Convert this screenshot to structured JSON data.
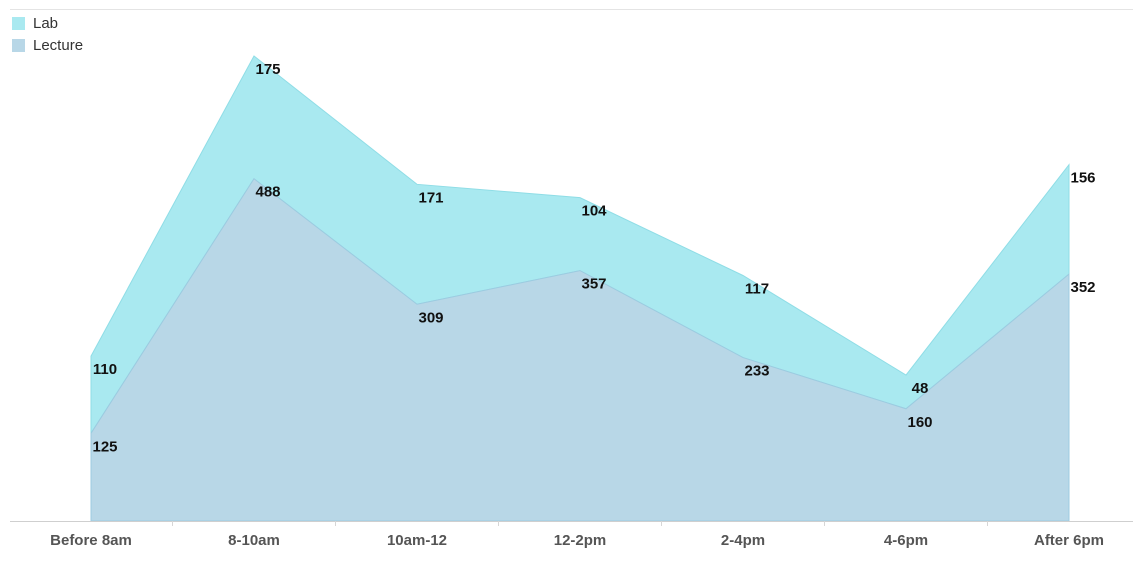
{
  "chart_data": {
    "type": "area",
    "stacked": true,
    "categories": [
      "Before 8am",
      "8-10am",
      "10am-12",
      "12-2pm",
      "2-4pm",
      "4-6pm",
      "After 6pm"
    ],
    "series": [
      {
        "name": "Lecture",
        "values": [
          125,
          488,
          309,
          357,
          233,
          160,
          352
        ],
        "color": "#b8d7e7"
      },
      {
        "name": "Lab",
        "values": [
          110,
          175,
          171,
          104,
          117,
          48,
          156
        ],
        "color": "#a9e9f0"
      }
    ],
    "ylim": [
      0,
      700
    ],
    "grid": false,
    "legend_position": "top-left",
    "title": "",
    "xlabel": "",
    "ylabel": ""
  },
  "legend": [
    {
      "label": "Lab",
      "color": "#a9e9f0"
    },
    {
      "label": "Lecture",
      "color": "#b8d7e7"
    }
  ]
}
